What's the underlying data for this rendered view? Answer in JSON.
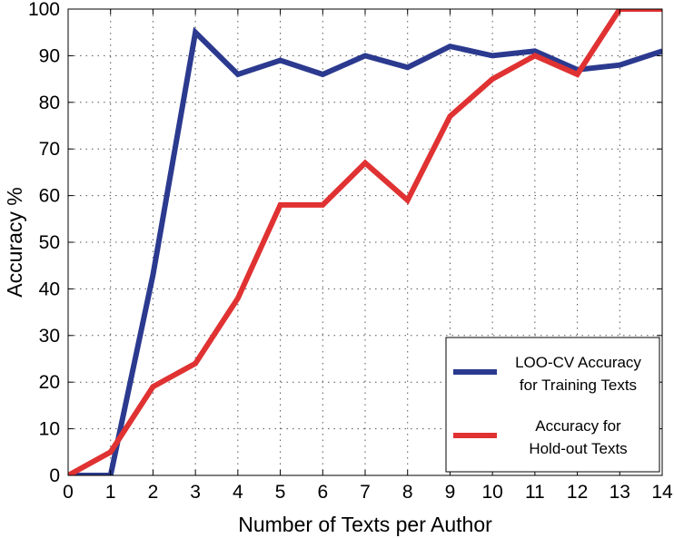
{
  "chart_data": {
    "type": "line",
    "xlabel": "Number of Texts per Author",
    "ylabel": "Accuracy %",
    "xlim": [
      0,
      14
    ],
    "ylim": [
      0,
      100
    ],
    "xticks": [
      "0",
      "1",
      "2",
      "3",
      "4",
      "5",
      "6",
      "7",
      "8",
      "9",
      "10",
      "11",
      "12",
      "13",
      "14"
    ],
    "yticks": [
      "0",
      "10",
      "20",
      "30",
      "40",
      "50",
      "60",
      "70",
      "80",
      "90",
      "100"
    ],
    "grid": true,
    "legend_position": "bottom-right",
    "x": [
      0,
      1,
      2,
      3,
      4,
      5,
      6,
      7,
      8,
      9,
      10,
      11,
      12,
      13,
      14
    ],
    "series": [
      {
        "name": "LOO-CV Accuracy for Training Texts",
        "legend_lines": [
          "LOO-CV Accuracy",
          "for Training Texts"
        ],
        "color": "#2b3a8f",
        "values": [
          0,
          0,
          43,
          95,
          86,
          89,
          86,
          90,
          87.5,
          92,
          90,
          91,
          87,
          88,
          91
        ]
      },
      {
        "name": "Accuracy for Hold-out Texts",
        "legend_lines": [
          "Accuracy for",
          "Hold-out Texts"
        ],
        "color": "#e03232",
        "values": [
          0,
          5,
          19,
          24,
          38,
          58,
          58,
          67,
          59,
          77,
          85,
          90,
          86,
          100,
          100
        ]
      }
    ]
  }
}
